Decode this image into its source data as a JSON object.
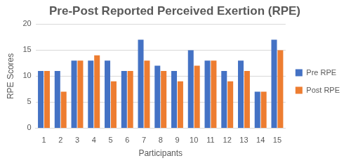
{
  "chart_data": {
    "type": "bar",
    "title": "Pre-Post Reported Perceived Exertion (RPE)",
    "x_label": "Participants",
    "y_label": "RPE Scores",
    "categories": [
      "1",
      "2",
      "3",
      "4",
      "5",
      "6",
      "7",
      "8",
      "9",
      "10",
      "11",
      "12",
      "13",
      "14",
      "15"
    ],
    "series": [
      {
        "name": "Pre RPE",
        "color": "#4472c4",
        "values": [
          11,
          11,
          13,
          13,
          13,
          11,
          17,
          12,
          11,
          15,
          13,
          11,
          13,
          7,
          17
        ]
      },
      {
        "name": "Post RPE",
        "color": "#ed7d31",
        "values": [
          11,
          7,
          13,
          14,
          9,
          11,
          13,
          11,
          9,
          12,
          13,
          9,
          11,
          7,
          15
        ]
      }
    ],
    "ylim": [
      0,
      20
    ],
    "yticks": [
      0,
      5,
      10,
      15,
      20
    ],
    "grid": true,
    "legend": "right"
  }
}
